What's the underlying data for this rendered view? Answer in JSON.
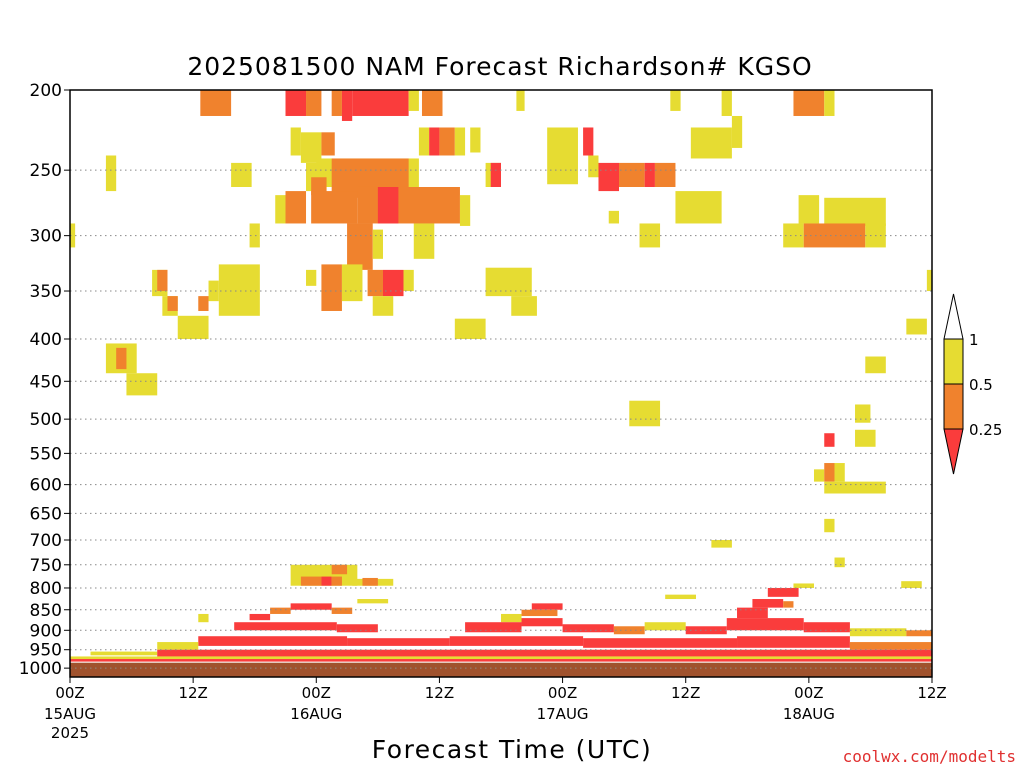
{
  "chart_data": {
    "type": "heatmap",
    "title": "2025081500 NAM Forecast Richardson# KGSO",
    "xlabel": "Forecast Time (UTC)",
    "ylabel": "",
    "credit": "coolwx.com/modelts",
    "y_scale": "log-pressure",
    "ylim": [
      1025,
      200
    ],
    "yticks": [
      200,
      250,
      300,
      350,
      400,
      450,
      500,
      550,
      600,
      650,
      700,
      750,
      800,
      850,
      900,
      950,
      1000
    ],
    "grid_levels": [
      200,
      250,
      300,
      350,
      400,
      450,
      500,
      550,
      600,
      650,
      700,
      750,
      800,
      850,
      900,
      950,
      1000
    ],
    "xlim": [
      0,
      84
    ],
    "x_units": "forecast hour",
    "xticks": [
      {
        "hour": 0,
        "label": "00Z",
        "date": "15AUG",
        "year": "2025"
      },
      {
        "hour": 12,
        "label": "12Z",
        "date": "",
        "year": ""
      },
      {
        "hour": 24,
        "label": "00Z",
        "date": "16AUG",
        "year": ""
      },
      {
        "hour": 36,
        "label": "12Z",
        "date": "",
        "year": ""
      },
      {
        "hour": 48,
        "label": "00Z",
        "date": "17AUG",
        "year": ""
      },
      {
        "hour": 60,
        "label": "12Z",
        "date": "",
        "year": ""
      },
      {
        "hour": 72,
        "label": "00Z",
        "date": "18AUG",
        "year": ""
      },
      {
        "hour": 84,
        "label": "12Z",
        "date": "",
        "year": ""
      }
    ],
    "colorbar": {
      "levels": [
        "1",
        "0.5",
        "0.25"
      ],
      "colors": {
        "high": "#ffffff",
        "mid1": "#e6dc32",
        "mid2": "#f0822d",
        "low": "#fa3c3c"
      }
    },
    "colors": {
      "lt_0.25": "#fa3c3c",
      "0.25_0.5": "#f0822d",
      "0.5_1": "#e6dc32",
      "ground": "#a0522d"
    },
    "ground_pressure": 985,
    "cells": [
      {
        "x0": 12.7,
        "x1": 15.7,
        "p0": 200,
        "p1": 215,
        "cat": "0.25_0.5"
      },
      {
        "x0": 21.0,
        "x1": 23.0,
        "p0": 200,
        "p1": 215,
        "cat": "lt_0.25"
      },
      {
        "x0": 23.0,
        "x1": 24.5,
        "p0": 200,
        "p1": 215,
        "cat": "0.25_0.5"
      },
      {
        "x0": 25.5,
        "x1": 26.5,
        "p0": 200,
        "p1": 215,
        "cat": "0.25_0.5"
      },
      {
        "x0": 26.5,
        "x1": 27.5,
        "p0": 200,
        "p1": 218,
        "cat": "lt_0.25"
      },
      {
        "x0": 27.5,
        "x1": 33.0,
        "p0": 200,
        "p1": 215,
        "cat": "lt_0.25"
      },
      {
        "x0": 33.0,
        "x1": 34.0,
        "p0": 200,
        "p1": 212,
        "cat": "0.5_1"
      },
      {
        "x0": 34.3,
        "x1": 36.3,
        "p0": 200,
        "p1": 215,
        "cat": "0.25_0.5"
      },
      {
        "x0": 43.5,
        "x1": 44.3,
        "p0": 200,
        "p1": 212,
        "cat": "0.5_1"
      },
      {
        "x0": 58.5,
        "x1": 59.5,
        "p0": 200,
        "p1": 212,
        "cat": "0.5_1"
      },
      {
        "x0": 63.5,
        "x1": 64.5,
        "p0": 200,
        "p1": 215,
        "cat": "0.5_1"
      },
      {
        "x0": 70.5,
        "x1": 73.5,
        "p0": 200,
        "p1": 215,
        "cat": "0.25_0.5"
      },
      {
        "x0": 73.5,
        "x1": 74.5,
        "p0": 200,
        "p1": 215,
        "cat": "0.5_1"
      },
      {
        "x0": 21.5,
        "x1": 22.5,
        "p0": 222,
        "p1": 240,
        "cat": "0.5_1"
      },
      {
        "x0": 22.5,
        "x1": 24.5,
        "p0": 225,
        "p1": 245,
        "cat": "0.5_1"
      },
      {
        "x0": 24.5,
        "x1": 25.8,
        "p0": 225,
        "p1": 240,
        "cat": "0.25_0.5"
      },
      {
        "x0": 34.0,
        "x1": 35.0,
        "p0": 222,
        "p1": 240,
        "cat": "0.5_1"
      },
      {
        "x0": 35.0,
        "x1": 36.0,
        "p0": 222,
        "p1": 240,
        "cat": "lt_0.25"
      },
      {
        "x0": 36.0,
        "x1": 37.5,
        "p0": 222,
        "p1": 240,
        "cat": "0.25_0.5"
      },
      {
        "x0": 37.5,
        "x1": 38.5,
        "p0": 222,
        "p1": 240,
        "cat": "0.5_1"
      },
      {
        "x0": 39.0,
        "x1": 40.0,
        "p0": 222,
        "p1": 238,
        "cat": "0.5_1"
      },
      {
        "x0": 46.5,
        "x1": 49.5,
        "p0": 222,
        "p1": 260,
        "cat": "0.5_1"
      },
      {
        "x0": 50.0,
        "x1": 51.0,
        "p0": 222,
        "p1": 240,
        "cat": "lt_0.25"
      },
      {
        "x0": 60.5,
        "x1": 64.5,
        "p0": 222,
        "p1": 242,
        "cat": "0.5_1"
      },
      {
        "x0": 64.5,
        "x1": 65.5,
        "p0": 215,
        "p1": 235,
        "cat": "0.5_1"
      },
      {
        "x0": 24.0,
        "x1": 34.0,
        "p0": 242,
        "p1": 262,
        "cat": "0.5_1"
      },
      {
        "x0": 25.5,
        "x1": 33.0,
        "p0": 242,
        "p1": 270,
        "cat": "0.25_0.5"
      },
      {
        "x0": 23.0,
        "x1": 25.0,
        "p0": 245,
        "p1": 265,
        "cat": "0.5_1"
      },
      {
        "x0": 23.5,
        "x1": 25.0,
        "p0": 255,
        "p1": 268,
        "cat": "0.25_0.5"
      },
      {
        "x0": 40.5,
        "x1": 42.0,
        "p0": 245,
        "p1": 262,
        "cat": "0.5_1"
      },
      {
        "x0": 41.0,
        "x1": 42.0,
        "p0": 245,
        "p1": 262,
        "cat": "lt_0.25"
      },
      {
        "x0": 50.5,
        "x1": 51.5,
        "p0": 240,
        "p1": 255,
        "cat": "0.5_1"
      },
      {
        "x0": 51.5,
        "x1": 53.5,
        "p0": 245,
        "p1": 265,
        "cat": "lt_0.25"
      },
      {
        "x0": 53.5,
        "x1": 56.0,
        "p0": 245,
        "p1": 262,
        "cat": "0.25_0.5"
      },
      {
        "x0": 56.0,
        "x1": 57.0,
        "p0": 245,
        "p1": 262,
        "cat": "lt_0.25"
      },
      {
        "x0": 57.0,
        "x1": 59.0,
        "p0": 245,
        "p1": 262,
        "cat": "0.25_0.5"
      },
      {
        "x0": 23.5,
        "x1": 28.0,
        "p0": 265,
        "p1": 290,
        "cat": "0.25_0.5"
      },
      {
        "x0": 28.0,
        "x1": 38.0,
        "p0": 262,
        "p1": 290,
        "cat": "0.25_0.5"
      },
      {
        "x0": 30.0,
        "x1": 32.0,
        "p0": 262,
        "p1": 290,
        "cat": "lt_0.25"
      },
      {
        "x0": 20.0,
        "x1": 21.0,
        "p0": 268,
        "p1": 290,
        "cat": "0.5_1"
      },
      {
        "x0": 21.0,
        "x1": 23.0,
        "p0": 265,
        "p1": 290,
        "cat": "0.25_0.5"
      },
      {
        "x0": 38.0,
        "x1": 39.0,
        "p0": 268,
        "p1": 292,
        "cat": "0.5_1"
      },
      {
        "x0": 59.0,
        "x1": 63.5,
        "p0": 265,
        "p1": 290,
        "cat": "0.5_1"
      },
      {
        "x0": 71.0,
        "x1": 73.0,
        "p0": 268,
        "p1": 290,
        "cat": "0.5_1"
      },
      {
        "x0": 73.5,
        "x1": 79.5,
        "p0": 270,
        "p1": 292,
        "cat": "0.5_1"
      },
      {
        "x0": 3.5,
        "x1": 4.5,
        "p0": 240,
        "p1": 265,
        "cat": "0.5_1"
      },
      {
        "x0": 15.7,
        "x1": 17.7,
        "p0": 245,
        "p1": 262,
        "cat": "0.5_1"
      },
      {
        "x0": 52.5,
        "x1": 53.5,
        "p0": 280,
        "p1": 290,
        "cat": "0.5_1"
      },
      {
        "x0": 27.0,
        "x1": 29.5,
        "p0": 290,
        "p1": 330,
        "cat": "0.25_0.5"
      },
      {
        "x0": 29.5,
        "x1": 30.5,
        "p0": 295,
        "p1": 320,
        "cat": "0.5_1"
      },
      {
        "x0": 33.5,
        "x1": 35.5,
        "p0": 290,
        "p1": 320,
        "cat": "0.5_1"
      },
      {
        "x0": 17.5,
        "x1": 18.5,
        "p0": 290,
        "p1": 310,
        "cat": "0.5_1"
      },
      {
        "x0": 0.0,
        "x1": 0.5,
        "p0": 290,
        "p1": 310,
        "cat": "0.5_1"
      },
      {
        "x0": 55.5,
        "x1": 57.5,
        "p0": 290,
        "p1": 310,
        "cat": "0.5_1"
      },
      {
        "x0": 69.5,
        "x1": 71.5,
        "p0": 290,
        "p1": 310,
        "cat": "0.5_1"
      },
      {
        "x0": 71.5,
        "x1": 77.5,
        "p0": 290,
        "p1": 310,
        "cat": "0.25_0.5"
      },
      {
        "x0": 77.5,
        "x1": 79.5,
        "p0": 290,
        "p1": 310,
        "cat": "0.5_1"
      },
      {
        "x0": 23.0,
        "x1": 24.0,
        "p0": 330,
        "p1": 345,
        "cat": "0.5_1"
      },
      {
        "x0": 24.5,
        "x1": 26.5,
        "p0": 325,
        "p1": 370,
        "cat": "0.25_0.5"
      },
      {
        "x0": 26.5,
        "x1": 28.5,
        "p0": 325,
        "p1": 360,
        "cat": "0.5_1"
      },
      {
        "x0": 29.0,
        "x1": 30.5,
        "p0": 330,
        "p1": 355,
        "cat": "0.25_0.5"
      },
      {
        "x0": 30.5,
        "x1": 32.5,
        "p0": 330,
        "p1": 355,
        "cat": "lt_0.25"
      },
      {
        "x0": 32.5,
        "x1": 33.5,
        "p0": 330,
        "p1": 350,
        "cat": "0.5_1"
      },
      {
        "x0": 29.5,
        "x1": 31.5,
        "p0": 355,
        "p1": 375,
        "cat": "0.5_1"
      },
      {
        "x0": 8.0,
        "x1": 9.5,
        "p0": 330,
        "p1": 355,
        "cat": "0.5_1"
      },
      {
        "x0": 8.5,
        "x1": 9.5,
        "p0": 330,
        "p1": 350,
        "cat": "0.25_0.5"
      },
      {
        "x0": 14.5,
        "x1": 18.5,
        "p0": 325,
        "p1": 375,
        "cat": "0.5_1"
      },
      {
        "x0": 13.5,
        "x1": 14.5,
        "p0": 340,
        "p1": 360,
        "cat": "0.5_1"
      },
      {
        "x0": 40.5,
        "x1": 45.0,
        "p0": 328,
        "p1": 355,
        "cat": "0.5_1"
      },
      {
        "x0": 43.0,
        "x1": 45.5,
        "p0": 355,
        "p1": 375,
        "cat": "0.5_1"
      },
      {
        "x0": 9.0,
        "x1": 10.5,
        "p0": 355,
        "p1": 375,
        "cat": "0.5_1"
      },
      {
        "x0": 9.5,
        "x1": 10.5,
        "p0": 355,
        "p1": 370,
        "cat": "0.25_0.5"
      },
      {
        "x0": 12.5,
        "x1": 13.5,
        "p0": 355,
        "p1": 370,
        "cat": "0.25_0.5"
      },
      {
        "x0": 83.5,
        "x1": 84.0,
        "p0": 330,
        "p1": 350,
        "cat": "0.5_1"
      },
      {
        "x0": 10.5,
        "x1": 13.5,
        "p0": 375,
        "p1": 400,
        "cat": "0.5_1"
      },
      {
        "x0": 37.5,
        "x1": 40.5,
        "p0": 378,
        "p1": 400,
        "cat": "0.5_1"
      },
      {
        "x0": 81.5,
        "x1": 83.5,
        "p0": 378,
        "p1": 395,
        "cat": "0.5_1"
      },
      {
        "x0": 3.5,
        "x1": 6.5,
        "p0": 405,
        "p1": 440,
        "cat": "0.5_1"
      },
      {
        "x0": 4.5,
        "x1": 5.5,
        "p0": 410,
        "p1": 435,
        "cat": "0.25_0.5"
      },
      {
        "x0": 5.5,
        "x1": 8.5,
        "p0": 440,
        "p1": 468,
        "cat": "0.5_1"
      },
      {
        "x0": 77.5,
        "x1": 79.5,
        "p0": 420,
        "p1": 440,
        "cat": "0.5_1"
      },
      {
        "x0": 54.5,
        "x1": 57.5,
        "p0": 475,
        "p1": 510,
        "cat": "0.5_1"
      },
      {
        "x0": 76.5,
        "x1": 78.0,
        "p0": 480,
        "p1": 505,
        "cat": "0.5_1"
      },
      {
        "x0": 76.5,
        "x1": 78.5,
        "p0": 515,
        "p1": 540,
        "cat": "0.5_1"
      },
      {
        "x0": 73.5,
        "x1": 74.5,
        "p0": 520,
        "p1": 540,
        "cat": "lt_0.25"
      },
      {
        "x0": 72.5,
        "x1": 73.5,
        "p0": 575,
        "p1": 595,
        "cat": "0.5_1"
      },
      {
        "x0": 73.5,
        "x1": 74.5,
        "p0": 565,
        "p1": 595,
        "cat": "0.25_0.5"
      },
      {
        "x0": 74.5,
        "x1": 75.5,
        "p0": 565,
        "p1": 595,
        "cat": "0.5_1"
      },
      {
        "x0": 73.5,
        "x1": 79.5,
        "p0": 595,
        "p1": 615,
        "cat": "0.5_1"
      },
      {
        "x0": 73.5,
        "x1": 74.5,
        "p0": 660,
        "p1": 685,
        "cat": "0.5_1"
      },
      {
        "x0": 62.5,
        "x1": 64.5,
        "p0": 700,
        "p1": 715,
        "cat": "0.5_1"
      },
      {
        "x0": 74.5,
        "x1": 75.5,
        "p0": 735,
        "p1": 755,
        "cat": "0.5_1"
      },
      {
        "x0": 21.5,
        "x1": 28.0,
        "p0": 750,
        "p1": 795,
        "cat": "0.5_1"
      },
      {
        "x0": 22.5,
        "x1": 24.5,
        "p0": 775,
        "p1": 795,
        "cat": "0.25_0.5"
      },
      {
        "x0": 24.5,
        "x1": 25.5,
        "p0": 775,
        "p1": 795,
        "cat": "lt_0.25"
      },
      {
        "x0": 25.5,
        "x1": 26.5,
        "p0": 775,
        "p1": 795,
        "cat": "0.25_0.5"
      },
      {
        "x0": 25.5,
        "x1": 27.0,
        "p0": 750,
        "p1": 770,
        "cat": "0.25_0.5"
      },
      {
        "x0": 27.5,
        "x1": 31.5,
        "p0": 780,
        "p1": 795,
        "cat": "0.5_1"
      },
      {
        "x0": 28.5,
        "x1": 30.0,
        "p0": 778,
        "p1": 795,
        "cat": "0.25_0.5"
      },
      {
        "x0": 81.0,
        "x1": 83.0,
        "p0": 785,
        "p1": 800,
        "cat": "0.5_1"
      },
      {
        "x0": 70.5,
        "x1": 72.5,
        "p0": 790,
        "p1": 800,
        "cat": "0.5_1"
      },
      {
        "x0": 58.0,
        "x1": 61.0,
        "p0": 815,
        "p1": 825,
        "cat": "0.5_1"
      },
      {
        "x0": 28.0,
        "x1": 31.0,
        "p0": 825,
        "p1": 835,
        "cat": "0.5_1"
      },
      {
        "x0": 21.5,
        "x1": 25.5,
        "p0": 835,
        "p1": 850,
        "cat": "lt_0.25"
      },
      {
        "x0": 19.5,
        "x1": 21.5,
        "p0": 845,
        "p1": 860,
        "cat": "0.25_0.5"
      },
      {
        "x0": 25.5,
        "x1": 27.5,
        "p0": 845,
        "p1": 860,
        "cat": "0.25_0.5"
      },
      {
        "x0": 17.5,
        "x1": 19.5,
        "p0": 860,
        "p1": 875,
        "cat": "lt_0.25"
      },
      {
        "x0": 12.5,
        "x1": 13.5,
        "p0": 860,
        "p1": 880,
        "cat": "0.5_1"
      },
      {
        "x0": 45.0,
        "x1": 48.0,
        "p0": 835,
        "p1": 850,
        "cat": "lt_0.25"
      },
      {
        "x0": 44.0,
        "x1": 47.5,
        "p0": 850,
        "p1": 865,
        "cat": "0.25_0.5"
      },
      {
        "x0": 42.0,
        "x1": 44.0,
        "p0": 860,
        "p1": 880,
        "cat": "0.5_1"
      },
      {
        "x0": 68.0,
        "x1": 71.0,
        "p0": 800,
        "p1": 820,
        "cat": "lt_0.25"
      },
      {
        "x0": 66.5,
        "x1": 69.5,
        "p0": 825,
        "p1": 845,
        "cat": "lt_0.25"
      },
      {
        "x0": 69.5,
        "x1": 70.5,
        "p0": 830,
        "p1": 845,
        "cat": "0.25_0.5"
      },
      {
        "x0": 65.0,
        "x1": 68.0,
        "p0": 845,
        "p1": 870,
        "cat": "lt_0.25"
      },
      {
        "x0": 16.0,
        "x1": 26.0,
        "p0": 880,
        "p1": 900,
        "cat": "lt_0.25"
      },
      {
        "x0": 26.0,
        "x1": 30.0,
        "p0": 885,
        "p1": 905,
        "cat": "lt_0.25"
      },
      {
        "x0": 38.5,
        "x1": 44.0,
        "p0": 880,
        "p1": 905,
        "cat": "lt_0.25"
      },
      {
        "x0": 44.0,
        "x1": 48.0,
        "p0": 870,
        "p1": 890,
        "cat": "lt_0.25"
      },
      {
        "x0": 48.0,
        "x1": 53.0,
        "p0": 885,
        "p1": 905,
        "cat": "lt_0.25"
      },
      {
        "x0": 53.0,
        "x1": 56.0,
        "p0": 890,
        "p1": 910,
        "cat": "0.25_0.5"
      },
      {
        "x0": 56.0,
        "x1": 60.0,
        "p0": 880,
        "p1": 900,
        "cat": "0.5_1"
      },
      {
        "x0": 60.0,
        "x1": 64.0,
        "p0": 890,
        "p1": 910,
        "cat": "lt_0.25"
      },
      {
        "x0": 64.0,
        "x1": 71.5,
        "p0": 870,
        "p1": 900,
        "cat": "lt_0.25"
      },
      {
        "x0": 71.5,
        "x1": 76.0,
        "p0": 880,
        "p1": 905,
        "cat": "lt_0.25"
      },
      {
        "x0": 76.0,
        "x1": 81.5,
        "p0": 895,
        "p1": 915,
        "cat": "0.5_1"
      },
      {
        "x0": 81.5,
        "x1": 84.0,
        "p0": 900,
        "p1": 915,
        "cat": "0.25_0.5"
      },
      {
        "x0": 12.5,
        "x1": 27.0,
        "p0": 915,
        "p1": 940,
        "cat": "lt_0.25"
      },
      {
        "x0": 27.0,
        "x1": 37.0,
        "p0": 920,
        "p1": 940,
        "cat": "lt_0.25"
      },
      {
        "x0": 37.0,
        "x1": 50.0,
        "p0": 915,
        "p1": 940,
        "cat": "lt_0.25"
      },
      {
        "x0": 50.0,
        "x1": 65.0,
        "p0": 920,
        "p1": 945,
        "cat": "lt_0.25"
      },
      {
        "x0": 65.0,
        "x1": 76.0,
        "p0": 915,
        "p1": 945,
        "cat": "lt_0.25"
      },
      {
        "x0": 76.0,
        "x1": 84.0,
        "p0": 930,
        "p1": 950,
        "cat": "0.25_0.5"
      },
      {
        "x0": 8.5,
        "x1": 12.5,
        "p0": 930,
        "p1": 950,
        "cat": "0.5_1"
      },
      {
        "x0": 2.0,
        "x1": 8.5,
        "p0": 955,
        "p1": 965,
        "cat": "0.5_1"
      },
      {
        "x0": 8.5,
        "x1": 84.0,
        "p0": 950,
        "p1": 968,
        "cat": "lt_0.25"
      },
      {
        "x0": 0.0,
        "x1": 84.0,
        "p0": 968,
        "p1": 975,
        "cat": "0.5_1"
      },
      {
        "x0": 0.0,
        "x1": 84.0,
        "p0": 975,
        "p1": 982,
        "cat": "lt_0.25"
      }
    ]
  }
}
